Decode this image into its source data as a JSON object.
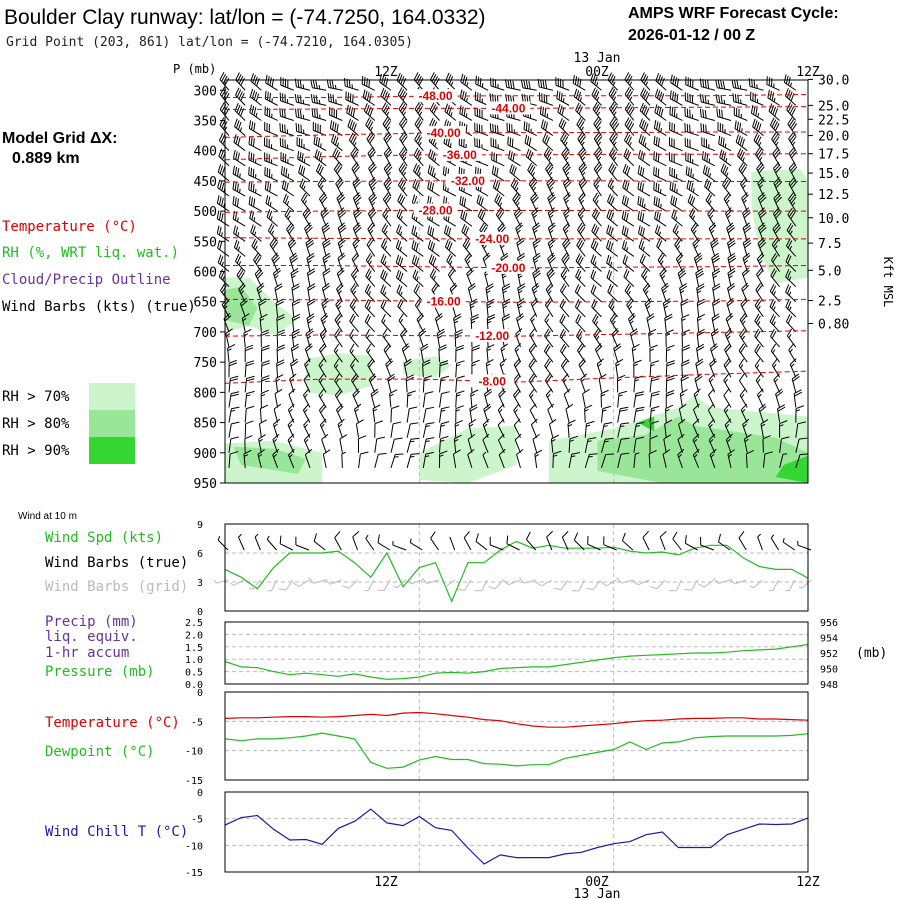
{
  "header": {
    "title": "Boulder Clay runway:  lat/lon = (-74.7250, 164.0332)",
    "subtitle": "Grid Point (203, 861) lat/lon = (-74.7210, 164.0305)",
    "cycle_label": "AMPS WRF Forecast Cycle:",
    "cycle_value": "2026-01-12 / 00  Z",
    "model_grid_label": "Model Grid ΔX:",
    "model_grid_value": "0.889 km"
  },
  "legend": {
    "temperature": "Temperature (°C)",
    "rh": "RH (%, WRT liq. wat.)",
    "cloud": "Cloud/Precip Outline",
    "wind_barbs": "Wind Barbs (kts) (true)",
    "rh_levels": [
      {
        "label": "RH > 70%",
        "color": "#ccf5cc"
      },
      {
        "label": "RH > 80%",
        "color": "#99e699"
      },
      {
        "label": "RH > 90%",
        "color": "#33d633"
      }
    ]
  },
  "colors": {
    "temperature": "#dd0000",
    "rh": "#22bb22",
    "cloud": "#663399",
    "wind_chill": "#1a1aaa",
    "grid_barb": "#bbbbbb",
    "grid": "#bbbbbb"
  },
  "time_axis": {
    "top_labels": [
      "12Z",
      "00Z",
      "12Z"
    ],
    "top_date": "13 Jan",
    "bottom_labels": [
      "12Z",
      "00Z",
      "12Z"
    ],
    "bottom_date": "13 Jan"
  },
  "chart_data": [
    {
      "type": "heatmap",
      "name": "cross-section",
      "ylabel": "P (mb)",
      "y2label": "Kft MSL",
      "x_hours": [
        0,
        36
      ],
      "pressure_ticks": [
        300,
        350,
        400,
        450,
        500,
        550,
        600,
        650,
        700,
        750,
        800,
        850,
        900,
        950
      ],
      "height_ticks": [
        {
          "label": "30.0",
          "p": 282
        },
        {
          "label": "25.0",
          "p": 325
        },
        {
          "label": "22.5",
          "p": 348
        },
        {
          "label": "20.0",
          "p": 375
        },
        {
          "label": "17.5",
          "p": 405
        },
        {
          "label": "15.0",
          "p": 437
        },
        {
          "label": "12.5",
          "p": 472
        },
        {
          "label": "10.0",
          "p": 511
        },
        {
          "label": "7.5",
          "p": 553
        },
        {
          "label": "5.0",
          "p": 598
        },
        {
          "label": "2.5",
          "p": 648
        },
        {
          "label": "0.80",
          "p": 686
        }
      ],
      "isotherms": [
        {
          "label": "-48.00",
          "label_hour": 13,
          "p": [
            312,
            312,
            310,
            309,
            309,
            309,
            307
          ]
        },
        {
          "label": "-44.00",
          "label_hour": 17.5,
          "p": [
            332,
            331,
            330,
            330,
            329,
            328,
            327
          ]
        },
        {
          "label": "-40.00",
          "label_hour": 13.5,
          "p": [
            378,
            374,
            371,
            370,
            370,
            369,
            369
          ]
        },
        {
          "label": "-36.00",
          "label_hour": 14.5,
          "p": [
            415,
            410,
            407,
            407,
            406,
            406,
            405
          ]
        },
        {
          "label": "-32.00",
          "label_hour": 15,
          "p": [
            452,
            451,
            450,
            450,
            450,
            451,
            451
          ]
        },
        {
          "label": "-28.00",
          "label_hour": 13,
          "p": [
            502,
            500,
            499,
            499,
            499,
            500,
            500
          ]
        },
        {
          "label": "-24.00",
          "label_hour": 16.5,
          "p": [
            544,
            545,
            546,
            546,
            546,
            546,
            546
          ]
        },
        {
          "label": "-20.00",
          "label_hour": 17.5,
          "p": [
            590,
            590,
            592,
            594,
            593,
            592,
            590
          ]
        },
        {
          "label": "-16.00",
          "label_hour": 13.5,
          "p": [
            646,
            647,
            649,
            651,
            650,
            649,
            646
          ]
        },
        {
          "label": "-12.00",
          "label_hour": 16.5,
          "p": [
            707,
            705,
            706,
            707,
            704,
            701,
            698
          ]
        },
        {
          "label": "-8.00",
          "label_hour": 16.5,
          "p": [
            785,
            778,
            778,
            783,
            776,
            770,
            765
          ]
        }
      ],
      "rh_patches": [
        {
          "level": 1,
          "points": [
            [
              0,
              610
            ],
            [
              1.5,
              610
            ],
            [
              3,
              650
            ],
            [
              4.5,
              680
            ],
            [
              3,
              705
            ],
            [
              1.5,
              690
            ],
            [
              0,
              700
            ]
          ]
        },
        {
          "level": 2,
          "points": [
            [
              0,
              630
            ],
            [
              1,
              625
            ],
            [
              2,
              660
            ],
            [
              1.5,
              690
            ],
            [
              0,
              680
            ]
          ]
        },
        {
          "level": 1,
          "points": [
            [
              32.5,
              435
            ],
            [
              35.5,
              430
            ],
            [
              36,
              450
            ],
            [
              36,
              610
            ],
            [
              34,
              620
            ],
            [
              33,
              570
            ],
            [
              32.5,
              490
            ]
          ]
        },
        {
          "level": 1,
          "points": [
            [
              5,
              745
            ],
            [
              7,
              735
            ],
            [
              9,
              740
            ],
            [
              9,
              790
            ],
            [
              7,
              805
            ],
            [
              5,
              800
            ]
          ]
        },
        {
          "level": 1,
          "points": [
            [
              11,
              748
            ],
            [
              13,
              740
            ],
            [
              14,
              755
            ],
            [
              13,
              775
            ],
            [
              11,
              770
            ]
          ]
        },
        {
          "level": 1,
          "points": [
            [
              0,
              885
            ],
            [
              3,
              880
            ],
            [
              6,
              900
            ],
            [
              6,
              950
            ],
            [
              0,
              950
            ]
          ]
        },
        {
          "level": 2,
          "points": [
            [
              0.5,
              890
            ],
            [
              3,
              893
            ],
            [
              5,
              910
            ],
            [
              4.5,
              935
            ],
            [
              1,
              920
            ]
          ]
        },
        {
          "level": 1,
          "points": [
            [
              12,
              900
            ],
            [
              15,
              860
            ],
            [
              18,
              855
            ],
            [
              18,
              920
            ],
            [
              15,
              950
            ],
            [
              12,
              945
            ]
          ]
        },
        {
          "level": 1,
          "points": [
            [
              20,
              880
            ],
            [
              24,
              860
            ],
            [
              28,
              825
            ],
            [
              29,
              805
            ],
            [
              30,
              825
            ],
            [
              36,
              840
            ],
            [
              36,
              950
            ],
            [
              20,
              950
            ]
          ]
        },
        {
          "level": 2,
          "points": [
            [
              23,
              880
            ],
            [
              26,
              870
            ],
            [
              28,
              840
            ],
            [
              29,
              855
            ],
            [
              34,
              875
            ],
            [
              36,
              900
            ],
            [
              36,
              950
            ],
            [
              27,
              950
            ],
            [
              23,
              930
            ]
          ]
        },
        {
          "level": 3,
          "points": [
            [
              25.5,
              850
            ],
            [
              26.5,
              840
            ],
            [
              26.5,
              865
            ]
          ]
        },
        {
          "level": 3,
          "points": [
            [
              34.5,
              920
            ],
            [
              36,
              905
            ],
            [
              36,
              950
            ],
            [
              34,
              940
            ]
          ]
        }
      ],
      "barb_columns": 36,
      "barb_levels": [
        300,
        325,
        350,
        375,
        400,
        425,
        450,
        475,
        500,
        525,
        550,
        575,
        600,
        625,
        650,
        675,
        700,
        725,
        750,
        775,
        800,
        825,
        850,
        875,
        900,
        925,
        950
      ]
    },
    {
      "type": "line",
      "name": "wind-10m",
      "title": "Wind at 10 m",
      "labels": [
        "Wind Spd (kts)",
        "Wind Barbs (true)",
        "Wind Barbs (grid)"
      ],
      "ylim": [
        0,
        9
      ],
      "yticks": [
        0,
        3,
        6,
        9
      ],
      "x": [
        0,
        1,
        2,
        3,
        4,
        5,
        6,
        7,
        8,
        9,
        10,
        11,
        12,
        13,
        14,
        15,
        16,
        17,
        18,
        19,
        20,
        21,
        22,
        23,
        24,
        25,
        26,
        27,
        28,
        29,
        30,
        31,
        32,
        33,
        34,
        35,
        36
      ],
      "values": [
        4.3,
        3.5,
        2.3,
        4.5,
        6,
        6,
        6,
        6.2,
        5,
        3.5,
        6,
        2.5,
        4.5,
        5,
        1,
        5,
        5,
        6.3,
        7.2,
        6.5,
        6.8,
        6.5,
        6.5,
        6.5,
        6.6,
        6.2,
        6,
        6.1,
        5.8,
        6.5,
        6.8,
        6.8,
        5.5,
        4.6,
        4.3,
        4.3,
        3.4
      ]
    },
    {
      "type": "line",
      "name": "precip-pressure",
      "labels": [
        "Precip (mm)",
        "liq. equiv.",
        "1-hr accum",
        "Pressure (mb)"
      ],
      "ylim": [
        0,
        2.5
      ],
      "yticks": [
        "0.0",
        "0.5",
        "1.0",
        "1.5",
        "2.0",
        "2.5"
      ],
      "y2lim": [
        948,
        956
      ],
      "y2ticks": [
        "948",
        "950",
        "952",
        "954",
        "956"
      ],
      "y2unit": "(mb)",
      "x": [
        0,
        1,
        2,
        3,
        4,
        5,
        6,
        7,
        8,
        9,
        10,
        11,
        12,
        13,
        14,
        15,
        16,
        17,
        18,
        19,
        20,
        21,
        22,
        23,
        24,
        25,
        26,
        27,
        28,
        29,
        30,
        31,
        32,
        33,
        34,
        35,
        36
      ],
      "pressure": [
        950.9,
        950.2,
        950.1,
        949.6,
        949.2,
        949.4,
        949.2,
        949.0,
        949.3,
        948.9,
        948.6,
        948.7,
        948.9,
        949.4,
        949.5,
        949.4,
        949.6,
        950.0,
        950.1,
        950.2,
        950.2,
        950.5,
        950.8,
        951.1,
        951.4,
        951.6,
        951.7,
        951.8,
        951.9,
        952.0,
        952.0,
        952.1,
        952.3,
        952.4,
        952.5,
        952.8,
        953.1
      ]
    },
    {
      "type": "line",
      "name": "temp-dewpoint",
      "labels": [
        "Temperature (°C)",
        "Dewpoint (°C)"
      ],
      "ylim": [
        -15,
        0
      ],
      "yticks": [
        "0",
        "-5",
        "-10",
        "-15"
      ],
      "x": [
        0,
        1,
        2,
        3,
        4,
        5,
        6,
        7,
        8,
        9,
        10,
        11,
        12,
        13,
        14,
        15,
        16,
        17,
        18,
        19,
        20,
        21,
        22,
        23,
        24,
        25,
        26,
        27,
        28,
        29,
        30,
        31,
        32,
        33,
        34,
        35,
        36
      ],
      "series": [
        {
          "name": "Temperature",
          "values": [
            -4.5,
            -4.4,
            -4.4,
            -4.3,
            -4.2,
            -4.2,
            -4.3,
            -4.2,
            -4.0,
            -3.8,
            -4.0,
            -3.6,
            -3.5,
            -3.7,
            -4.0,
            -4.3,
            -4.7,
            -4.9,
            -5.4,
            -5.8,
            -6.0,
            -6.0,
            -5.8,
            -5.6,
            -5.4,
            -5.1,
            -4.9,
            -4.8,
            -4.6,
            -4.5,
            -4.5,
            -4.4,
            -4.4,
            -4.6,
            -4.6,
            -4.7,
            -4.8
          ]
        },
        {
          "name": "Dewpoint",
          "values": [
            -8.0,
            -8.3,
            -8.0,
            -8.0,
            -7.8,
            -7.5,
            -7.0,
            -7.5,
            -8.0,
            -12.0,
            -13.0,
            -12.8,
            -11.6,
            -11.0,
            -11.5,
            -11.5,
            -12.2,
            -12.3,
            -12.6,
            -12.4,
            -12.4,
            -11.3,
            -10.8,
            -10.3,
            -9.8,
            -8.5,
            -9.8,
            -8.7,
            -8.5,
            -7.8,
            -7.6,
            -7.5,
            -7.5,
            -7.5,
            -7.5,
            -7.4,
            -7.1
          ]
        }
      ]
    },
    {
      "type": "line",
      "name": "wind-chill",
      "labels": [
        "Wind Chill T (°C)"
      ],
      "ylim": [
        -15,
        0
      ],
      "yticks": [
        "0",
        "-5",
        "-10",
        "-15"
      ],
      "x": [
        0,
        1,
        2,
        3,
        4,
        5,
        6,
        7,
        8,
        9,
        10,
        11,
        12,
        13,
        14,
        15,
        16,
        17,
        18,
        19,
        20,
        21,
        22,
        23,
        24,
        25,
        26,
        27,
        28,
        29,
        30,
        31,
        32,
        33,
        34,
        35,
        36
      ],
      "values": [
        -6.2,
        -4.8,
        -4.4,
        -7.0,
        -9.0,
        -8.9,
        -9.8,
        -6.8,
        -5.5,
        -3.2,
        -5.8,
        -6.3,
        -4.6,
        -6.7,
        -7.2,
        -10.5,
        -13.5,
        -11.8,
        -12.3,
        -12.3,
        -12.3,
        -11.6,
        -11.3,
        -10.4,
        -9.7,
        -9.3,
        -8.0,
        -7.5,
        -10.4,
        -10.4,
        -10.4,
        -8.0,
        -7.0,
        -6.0,
        -6.1,
        -6.0,
        -4.9
      ]
    }
  ]
}
